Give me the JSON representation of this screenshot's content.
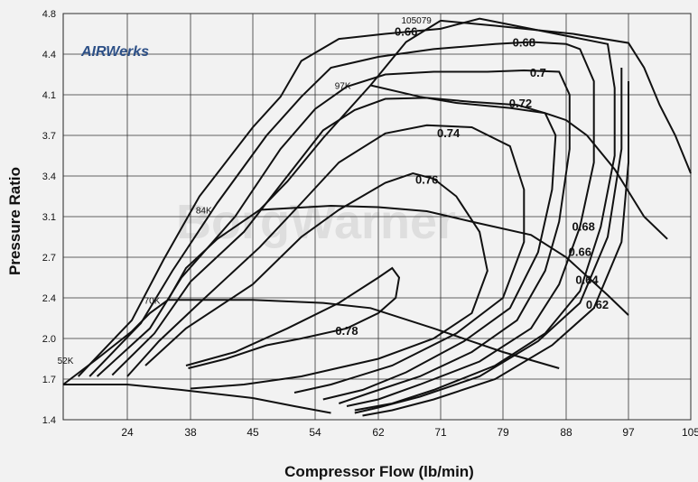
{
  "chart_data": {
    "type": "line",
    "xlabel": "Compressor Flow (lb/min)",
    "ylabel": "Pressure Ratio",
    "x_ticks": [
      24,
      38,
      45,
      54,
      62,
      71,
      79,
      88,
      97,
      105
    ],
    "y_ticks": [
      1.4,
      1.7,
      2.0,
      2.4,
      2.7,
      3.1,
      3.4,
      3.7,
      4.1,
      4.4,
      4.8
    ],
    "grid": true,
    "speed_lines": [
      {
        "label": "52K",
        "points": [
          [
            15.5,
            1.66
          ],
          [
            24,
            1.66
          ],
          [
            36,
            1.62
          ],
          [
            45,
            1.56
          ],
          [
            51,
            1.5
          ],
          [
            56,
            1.45
          ]
        ]
      },
      {
        "label": "70K",
        "points": [
          [
            33,
            2.38
          ],
          [
            45,
            2.38
          ],
          [
            55,
            2.35
          ],
          [
            61,
            2.3
          ],
          [
            70,
            2.1
          ],
          [
            79,
            1.9
          ],
          [
            87,
            1.78
          ]
        ]
      },
      {
        "label": "84K",
        "points": [
          [
            46,
            3.15
          ],
          [
            56,
            3.18
          ],
          [
            62,
            3.17
          ],
          [
            69,
            3.14
          ],
          [
            75,
            3.05
          ],
          [
            83,
            2.92
          ],
          [
            88,
            2.7
          ],
          [
            94,
            2.42
          ],
          [
            97,
            2.23
          ]
        ]
      },
      {
        "label": "97K",
        "points": [
          [
            61,
            4.17
          ],
          [
            68,
            4.08
          ],
          [
            73,
            4.02
          ],
          [
            80,
            3.97
          ],
          [
            85,
            3.92
          ],
          [
            88,
            3.85
          ],
          [
            91,
            3.7
          ],
          [
            95,
            3.45
          ],
          [
            99,
            3.1
          ],
          [
            102,
            2.88
          ]
        ]
      },
      {
        "label": "105079",
        "points": [
          [
            71,
            4.73
          ],
          [
            78,
            4.68
          ],
          [
            89,
            4.6
          ],
          [
            97,
            4.51
          ],
          [
            99,
            4.3
          ],
          [
            101,
            4.0
          ],
          [
            103,
            3.7
          ],
          [
            105,
            3.42
          ]
        ]
      }
    ],
    "surge_line": {
      "points": [
        [
          15.5,
          1.66
        ],
        [
          20,
          1.85
        ],
        [
          25,
          2.07
        ],
        [
          29,
          2.25
        ],
        [
          33,
          2.38
        ],
        [
          37,
          2.62
        ],
        [
          41,
          2.88
        ],
        [
          46,
          3.15
        ],
        [
          50,
          3.36
        ],
        [
          55,
          3.68
        ],
        [
          61,
          4.17
        ],
        [
          66,
          4.52
        ],
        [
          71,
          4.73
        ]
      ]
    },
    "efficiency_islands": [
      {
        "label": "0.78",
        "points": [
          [
            37,
            1.8
          ],
          [
            43,
            1.9
          ],
          [
            50,
            2.1
          ],
          [
            57,
            2.35
          ],
          [
            62,
            2.55
          ],
          [
            64,
            2.62
          ],
          [
            65,
            2.55
          ],
          [
            64.5,
            2.4
          ],
          [
            62,
            2.25
          ],
          [
            58,
            2.1
          ],
          [
            52,
            2.0
          ],
          [
            47,
            1.95
          ],
          [
            42,
            1.85
          ],
          [
            37.5,
            1.78
          ]
        ]
      },
      {
        "label": "0.76",
        "points": [
          [
            28,
            1.8
          ],
          [
            37,
            2.1
          ],
          [
            45,
            2.5
          ],
          [
            52,
            2.9
          ],
          [
            57,
            3.15
          ],
          [
            63,
            3.35
          ],
          [
            67,
            3.42
          ],
          [
            70,
            3.38
          ],
          [
            73,
            3.25
          ],
          [
            76,
            2.95
          ],
          [
            77,
            2.6
          ],
          [
            75,
            2.25
          ],
          [
            70,
            2.0
          ],
          [
            62,
            1.85
          ],
          [
            52,
            1.72
          ],
          [
            44,
            1.66
          ],
          [
            38,
            1.63
          ]
        ]
      },
      {
        "label": "0.74",
        "points": [
          [
            24,
            1.72
          ],
          [
            31,
            1.98
          ],
          [
            39,
            2.35
          ],
          [
            46,
            2.8
          ],
          [
            52,
            3.2
          ],
          [
            57,
            3.5
          ],
          [
            63,
            3.72
          ],
          [
            69,
            3.8
          ],
          [
            75,
            3.78
          ],
          [
            80,
            3.62
          ],
          [
            82,
            3.3
          ],
          [
            82,
            2.85
          ],
          [
            79,
            2.4
          ],
          [
            73,
            2.05
          ],
          [
            64,
            1.8
          ],
          [
            56,
            1.66
          ],
          [
            51,
            1.6
          ]
        ]
      },
      {
        "label": "0.72",
        "points": [
          [
            22,
            1.73
          ],
          [
            30,
            2.05
          ],
          [
            38,
            2.52
          ],
          [
            44,
            2.95
          ],
          [
            50,
            3.4
          ],
          [
            55,
            3.75
          ],
          [
            59,
            3.95
          ],
          [
            63,
            4.06
          ],
          [
            69,
            4.07
          ],
          [
            75,
            4.03
          ],
          [
            81,
            4.0
          ],
          [
            85,
            3.92
          ],
          [
            86.5,
            3.7
          ],
          [
            86,
            3.3
          ],
          [
            84,
            2.75
          ],
          [
            80,
            2.3
          ],
          [
            74,
            1.98
          ],
          [
            66,
            1.75
          ],
          [
            60,
            1.62
          ],
          [
            55,
            1.55
          ]
        ]
      },
      {
        "label": "0.7",
        "points": [
          [
            20,
            1.72
          ],
          [
            29,
            2.1
          ],
          [
            36,
            2.55
          ],
          [
            43,
            3.1
          ],
          [
            49,
            3.6
          ],
          [
            54,
            3.96
          ],
          [
            58,
            4.16
          ],
          [
            63,
            4.25
          ],
          [
            70,
            4.27
          ],
          [
            77,
            4.27
          ],
          [
            82,
            4.28
          ],
          [
            87,
            4.27
          ],
          [
            88.5,
            4.1
          ],
          [
            88.5,
            3.6
          ],
          [
            87,
            3.05
          ],
          [
            85,
            2.6
          ],
          [
            81,
            2.18
          ],
          [
            75,
            1.9
          ],
          [
            68,
            1.72
          ],
          [
            61,
            1.6
          ],
          [
            57,
            1.52
          ]
        ]
      },
      {
        "label": "0.68",
        "points": [
          [
            19,
            1.72
          ],
          [
            27,
            2.15
          ],
          [
            34,
            2.6
          ],
          [
            41,
            3.2
          ],
          [
            47,
            3.7
          ],
          [
            52,
            4.08
          ],
          [
            56,
            4.3
          ],
          [
            62,
            4.38
          ],
          [
            70,
            4.45
          ],
          [
            78,
            4.5
          ],
          [
            83,
            4.52
          ],
          [
            88,
            4.5
          ],
          [
            90,
            4.45
          ],
          [
            92,
            4.2
          ],
          [
            92,
            3.5
          ],
          [
            90,
            3.0
          ],
          [
            87,
            2.5
          ],
          [
            83,
            2.1
          ],
          [
            76,
            1.83
          ],
          [
            68,
            1.66
          ],
          [
            62,
            1.55
          ],
          [
            58,
            1.5
          ]
        ]
      },
      {
        "label": "0.66",
        "points": [
          [
            17.5,
            1.72
          ],
          [
            25,
            2.18
          ],
          [
            32,
            2.68
          ],
          [
            39,
            3.25
          ],
          [
            45,
            3.78
          ],
          [
            49,
            4.08
          ],
          [
            52,
            4.35
          ],
          [
            57,
            4.55
          ],
          [
            63,
            4.6
          ],
          [
            71,
            4.65
          ],
          [
            76,
            4.75
          ],
          [
            94,
            4.5
          ],
          [
            95,
            4.15
          ],
          [
            95,
            3.55
          ],
          [
            93,
            3.0
          ],
          [
            90,
            2.45
          ],
          [
            85,
            2.05
          ],
          [
            78,
            1.8
          ],
          [
            70,
            1.62
          ],
          [
            64,
            1.52
          ],
          [
            59,
            1.47
          ]
        ]
      },
      {
        "label": "0.64",
        "points": [
          [
            96,
            4.3
          ],
          [
            96,
            3.6
          ],
          [
            94,
            2.9
          ],
          [
            90,
            2.35
          ],
          [
            84,
            1.98
          ],
          [
            76,
            1.72
          ],
          [
            68,
            1.57
          ],
          [
            62,
            1.49
          ],
          [
            59,
            1.45
          ]
        ]
      },
      {
        "label": "0.62",
        "points": [
          [
            97,
            4.2
          ],
          [
            97,
            3.5
          ],
          [
            96,
            2.85
          ],
          [
            92,
            2.3
          ],
          [
            86,
            1.95
          ],
          [
            78,
            1.7
          ],
          [
            70,
            1.55
          ],
          [
            64,
            1.47
          ],
          [
            60,
            1.43
          ]
        ]
      }
    ]
  },
  "logo_text": "AIRWerks",
  "watermark_text": "BorgWarner"
}
